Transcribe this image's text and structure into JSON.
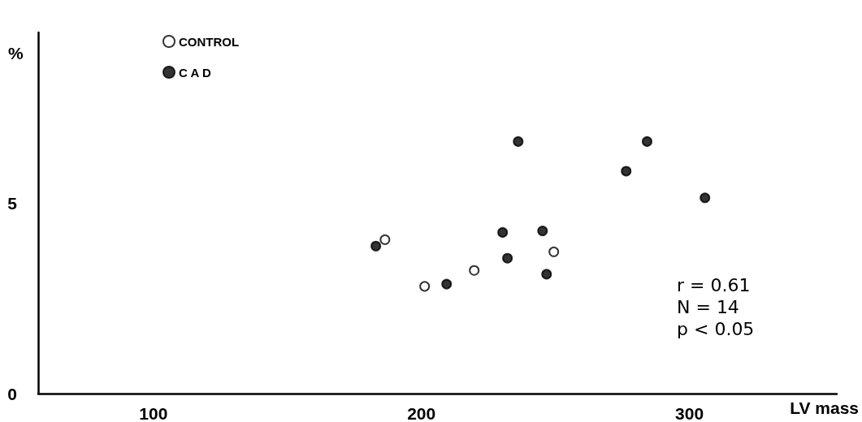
{
  "chart_data": {
    "type": "scatter",
    "xlabel": "LV mass",
    "ylabel": "%",
    "xlim": [
      57,
      355
    ],
    "xticks": [
      100,
      200,
      300
    ],
    "ylim": [
      0,
      9.5
    ],
    "yticks": [
      0,
      5
    ],
    "grid": false,
    "legend": "top left",
    "marker": "circle",
    "annotations": [
      "r = 0.61",
      "N = 14",
      "p < 0.05"
    ],
    "series": [
      {
        "name": "CONTROL",
        "color": "#ffffff",
        "x": [
          186.4,
          201.2,
          219.7,
          249.4
        ],
        "values": [
          4.05,
          2.82,
          3.24,
          3.73
        ]
      },
      {
        "name": "C A D",
        "color": "#000000",
        "x": [
          183.0,
          209.4,
          236.1,
          230.3,
          232.1,
          245.2,
          246.7,
          276.4,
          284.2,
          305.8
        ],
        "values": [
          3.88,
          2.88,
          6.63,
          4.24,
          3.56,
          4.28,
          3.14,
          5.85,
          6.63,
          5.15
        ]
      }
    ]
  }
}
